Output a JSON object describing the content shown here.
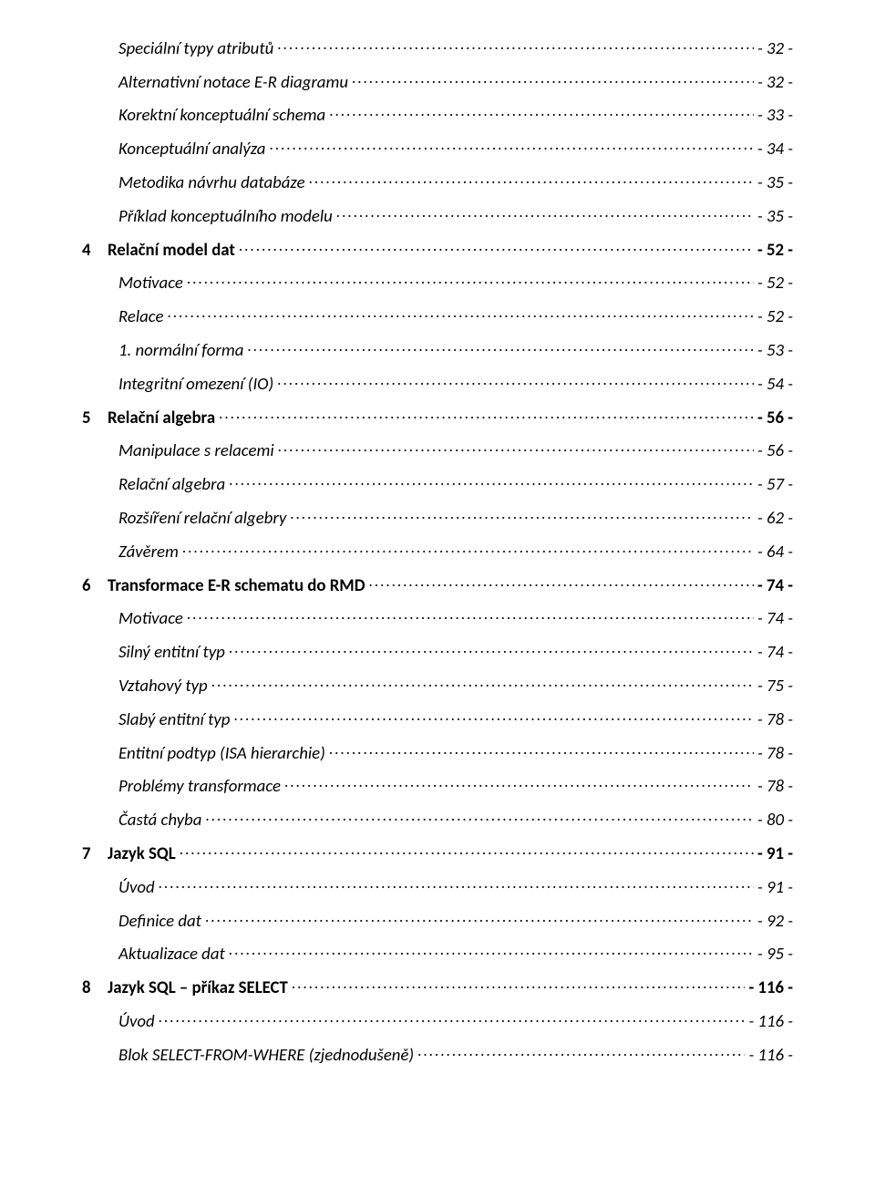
{
  "page": {
    "background": "#ffffff",
    "text_color": "#000000",
    "font_family": "Calibri",
    "body_font_size_pt": 11
  },
  "toc": [
    {
      "type": "sub",
      "label": "Speciální typy atributů",
      "page": "- 32 -"
    },
    {
      "type": "sub",
      "label": "Alternativní notace E-R diagramu",
      "page": "- 32 -"
    },
    {
      "type": "sub",
      "label": "Korektní konceptuální schema",
      "page": "- 33 -"
    },
    {
      "type": "sub",
      "label": "Konceptuální analýza",
      "page": "- 34 -"
    },
    {
      "type": "sub",
      "label": "Metodika návrhu databáze",
      "page": "- 35 -"
    },
    {
      "type": "sub",
      "label": "Příklad konceptuálního modelu",
      "page": "- 35 -"
    },
    {
      "type": "chapter",
      "num": "4",
      "label": "Relační model dat",
      "page": "- 52 -"
    },
    {
      "type": "sub",
      "label": "Motivace",
      "page": "- 52 -"
    },
    {
      "type": "sub",
      "label": "Relace",
      "page": "- 52 -"
    },
    {
      "type": "sub",
      "label": "1. normální forma",
      "page": "- 53 -"
    },
    {
      "type": "sub",
      "label": "Integritní omezení (IO)",
      "page": "- 54 -"
    },
    {
      "type": "chapter",
      "num": "5",
      "label": "Relační algebra",
      "page": "- 56 -"
    },
    {
      "type": "sub",
      "label": "Manipulace s relacemi",
      "page": "- 56 -"
    },
    {
      "type": "sub",
      "label": "Relační algebra",
      "page": "- 57 -"
    },
    {
      "type": "sub",
      "label": "Rozšíření relační algebry",
      "page": "- 62 -"
    },
    {
      "type": "sub",
      "label": "Závěrem",
      "page": "- 64 -"
    },
    {
      "type": "chapter",
      "num": "6",
      "label": "Transformace E-R schematu do RMD",
      "page": "- 74 -"
    },
    {
      "type": "sub",
      "label": "Motivace",
      "page": "- 74 -"
    },
    {
      "type": "sub",
      "label": "Silný entitní typ",
      "page": "- 74 -"
    },
    {
      "type": "sub",
      "label": "Vztahový typ",
      "page": "- 75 -"
    },
    {
      "type": "sub",
      "label": "Slabý entitní typ",
      "page": "- 78 -"
    },
    {
      "type": "sub",
      "label": "Entitní podtyp (ISA hierarchie)",
      "page": "- 78 -"
    },
    {
      "type": "sub",
      "label": "Problémy transformace",
      "page": "- 78 -"
    },
    {
      "type": "sub",
      "label": "Častá chyba",
      "page": "- 80 -"
    },
    {
      "type": "chapter",
      "num": "7",
      "label": "Jazyk SQL",
      "page": "- 91 -"
    },
    {
      "type": "sub",
      "label": "Úvod",
      "page": "- 91 -"
    },
    {
      "type": "sub",
      "label": "Definice dat",
      "page": "- 92 -"
    },
    {
      "type": "sub",
      "label": "Aktualizace dat",
      "page": "- 95 -"
    },
    {
      "type": "chapter",
      "num": "8",
      "label": "Jazyk SQL – příkaz SELECT",
      "page": "- 116 -"
    },
    {
      "type": "sub",
      "label": "Úvod",
      "page": "- 116 -"
    },
    {
      "type": "sub",
      "label": "Blok SELECT-FROM-WHERE (zjednodušeně)",
      "page": "- 116 -"
    }
  ]
}
